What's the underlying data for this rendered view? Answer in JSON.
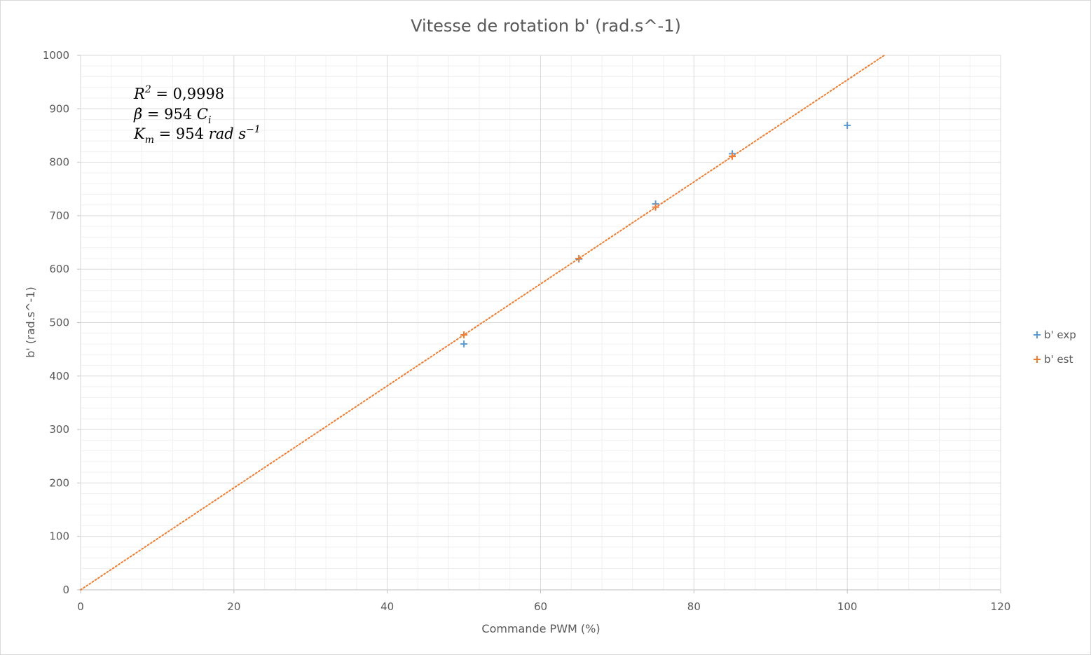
{
  "chart_data": {
    "type": "scatter",
    "title": "Vitesse de rotation b' (rad.s^-1)",
    "xlabel": "Commande PWM (%)",
    "ylabel": "b' (rad.s^-1)",
    "xlim": [
      0,
      120
    ],
    "ylim": [
      0,
      1000
    ],
    "x_major_step": 20,
    "y_major_step": 100,
    "x_ticks": [
      "0",
      "20",
      "40",
      "60",
      "80",
      "100",
      "120"
    ],
    "y_ticks": [
      "0",
      "100",
      "200",
      "300",
      "400",
      "500",
      "600",
      "700",
      "800",
      "900",
      "1000"
    ],
    "grid": true,
    "minor_grid": true,
    "legend_position": "right",
    "series": [
      {
        "name": "b' exp",
        "color": "#5b9bd5",
        "marker": "plus",
        "x": [
          50,
          65,
          75,
          85,
          100
        ],
        "y": [
          460,
          619,
          722,
          816,
          869
        ]
      },
      {
        "name": "b' est",
        "color": "#ed7d31",
        "marker": "plus",
        "x": [
          50,
          65,
          75,
          85
        ],
        "y": [
          477,
          620,
          716,
          811
        ]
      }
    ],
    "trendline": {
      "color": "#ed7d31",
      "style": "dotted",
      "slope": 9.54,
      "intercept": 0
    },
    "annotation": {
      "line1": {
        "main": "R",
        "sup": "2",
        "rest": " = 0,9998"
      },
      "line2": {
        "main": "β̇",
        "rest": " = 954 ",
        "var": "C",
        "sub": "i"
      },
      "line3": {
        "main": "K",
        "sub": "m",
        "rest": "  = 954 ",
        "unit": "rad s",
        "sup": "−1"
      }
    }
  }
}
